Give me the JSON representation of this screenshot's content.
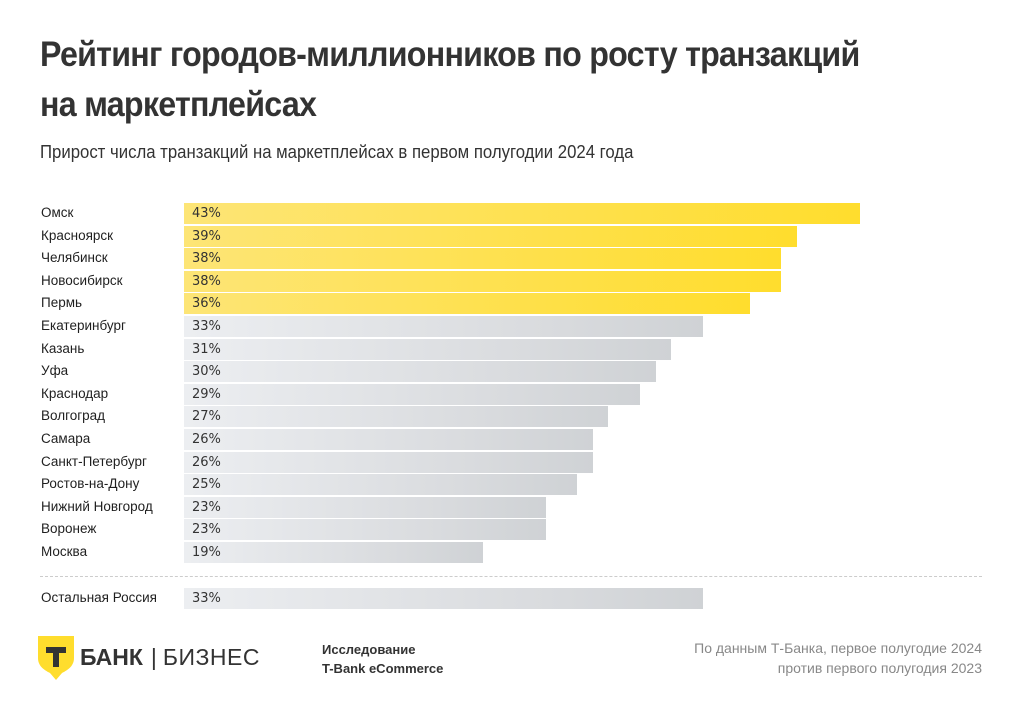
{
  "header": {
    "title": "Рейтинг городов-миллионников по росту транзакций на маркетплейсах",
    "subtitle": "Прирост числа транзакций на маркетплейсах в первом полугодии 2024 года"
  },
  "chart_data": {
    "type": "bar",
    "orientation": "horizontal",
    "title": "Рейтинг городов-миллионников по росту транзакций на маркетплейсах",
    "subtitle": "Прирост числа транзакций на маркетплейсах в первом полугодии 2024 года",
    "xlabel": "",
    "ylabel": "",
    "unit": "%",
    "xlim": [
      0,
      43
    ],
    "grid": false,
    "categories": [
      "Омск",
      "Красноярск",
      "Челябинск",
      "Новосибирск",
      "Пермь",
      "Екатеринбург",
      "Казань",
      "Уфа",
      "Краснодар",
      "Волгоград",
      "Самара",
      "Санкт-Петербург",
      "Ростов-на-Дону",
      "Нижний Новгород",
      "Воронеж",
      "Москва"
    ],
    "values": [
      43,
      39,
      38,
      38,
      36,
      33,
      31,
      30,
      29,
      27,
      26,
      26,
      25,
      23,
      23,
      19
    ],
    "labels": [
      "43%",
      "39%",
      "38%",
      "38%",
      "36%",
      "33%",
      "31%",
      "30%",
      "29%",
      "27%",
      "26%",
      "26%",
      "25%",
      "23%",
      "23%",
      "19%"
    ],
    "highlighted_top": 5,
    "reference": {
      "category": "Остальная Россия",
      "value": 33,
      "label": "33%"
    },
    "colors": {
      "highlight": "#ffdd2d",
      "default": "#d9dbde"
    }
  },
  "footer": {
    "logo_letter": "Т",
    "brand_name": "БАНК",
    "brand_separator": "|",
    "brand_suffix": "БИЗНЕС",
    "research_line1": "Исследование",
    "research_line2": "T-Bank eCommerce",
    "source_line1": "По данным Т-Банка, первое полугодие 2024",
    "source_line2": "против первого полугодия 2023"
  }
}
